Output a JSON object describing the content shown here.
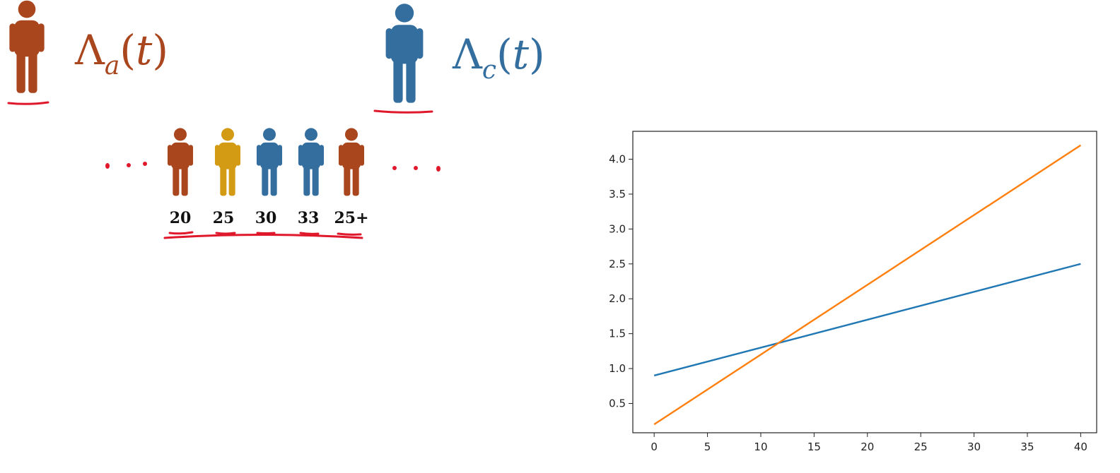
{
  "annotations": {
    "lambda_a": {
      "symbol": "Λ",
      "subscript": "a",
      "arg": "t",
      "color": "#a9461d"
    },
    "lambda_c": {
      "symbol": "Λ",
      "subscript": "c",
      "arg": "t",
      "color": "#336e9e"
    }
  },
  "sequence": {
    "ellipsis_color": "#e0182b",
    "people": [
      {
        "label": "20",
        "color": "#a9461d"
      },
      {
        "label": "25",
        "color": "#d39a13"
      },
      {
        "label": "30",
        "color": "#336e9e"
      },
      {
        "label": "33",
        "color": "#336e9e"
      },
      {
        "label": "25+",
        "color": "#a9461d"
      }
    ]
  },
  "colors": {
    "person_a": "#a9461d",
    "person_c": "#336e9e",
    "red_ink": "#e0182b"
  },
  "chart_data": {
    "type": "line",
    "title": "",
    "xlabel": "",
    "ylabel": "",
    "xlim": [
      -2,
      41.5
    ],
    "ylim": [
      0.08,
      4.4
    ],
    "xticks": [
      0,
      5,
      10,
      15,
      20,
      25,
      30,
      35,
      40
    ],
    "yticks": [
      0.5,
      1.0,
      1.5,
      2.0,
      2.5,
      3.0,
      3.5,
      4.0
    ],
    "ytick_labels": [
      "0.5",
      "1.0",
      "1.5",
      "2.0",
      "2.5",
      "3.0",
      "3.5",
      "4.0"
    ],
    "grid": false,
    "series": [
      {
        "color": "#1f77b4",
        "x": [
          0,
          40
        ],
        "y": [
          0.9,
          2.5
        ]
      },
      {
        "color": "#ff7f0e",
        "x": [
          0,
          40
        ],
        "y": [
          0.2,
          4.2
        ]
      }
    ]
  }
}
